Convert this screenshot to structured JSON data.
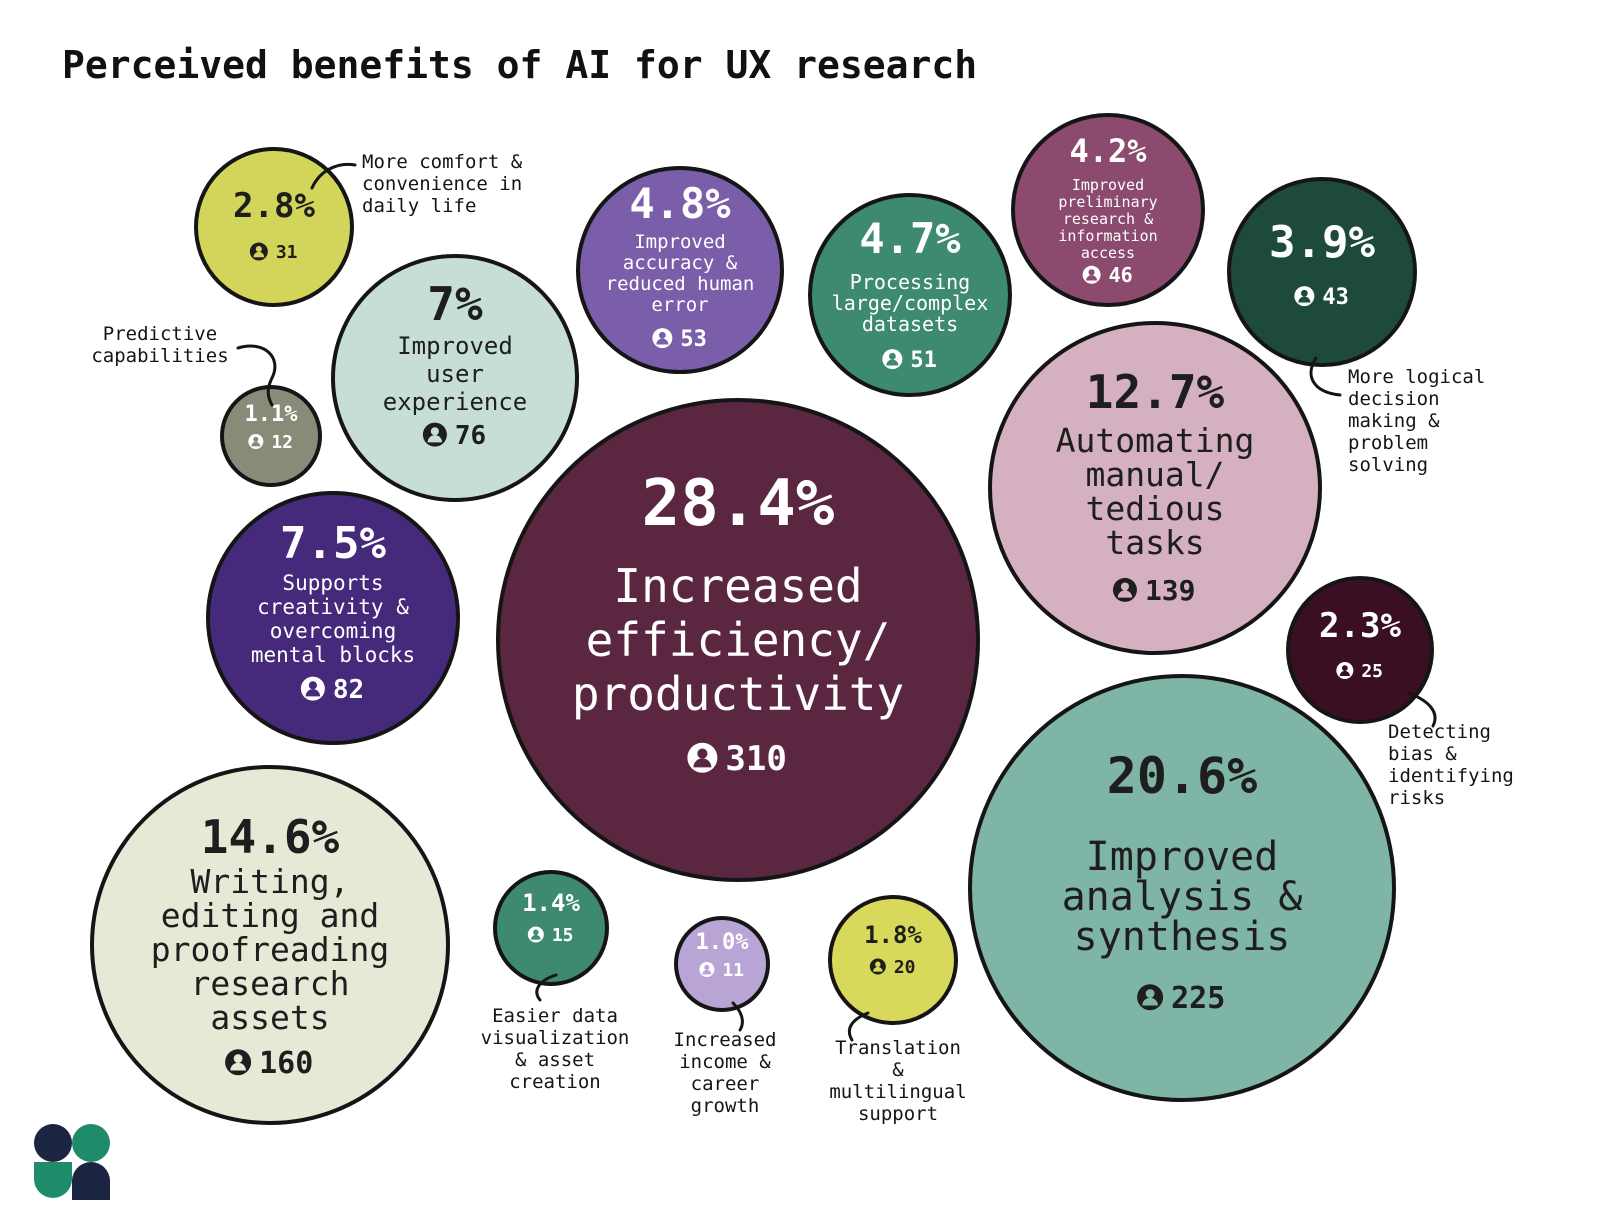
{
  "chart_data": {
    "type": "bubble",
    "title": "Perceived benefits of AI for UX research",
    "series": [
      {
        "label": "Increased efficiency/ productivity",
        "percent": "28.4%",
        "count": 310,
        "color": "#5b2640",
        "text_color": "#ffffff"
      },
      {
        "label": "Improved analysis & synthesis",
        "percent": "20.6%",
        "count": 225,
        "color": "#7eb5a6",
        "text_color": "#1e1e1e"
      },
      {
        "label": "Writing, editing and proofreading research assets",
        "percent": "14.6%",
        "count": 160,
        "color": "#e8e8d6",
        "text_color": "#1e1e1e"
      },
      {
        "label": "Automating manual/ tedious tasks",
        "percent": "12.7%",
        "count": 139,
        "color": "#d4b0c0",
        "text_color": "#1e1e1e"
      },
      {
        "label": "Supports creativity & overcoming mental blocks",
        "percent": "7.5%",
        "count": 82,
        "color": "#452a7b",
        "text_color": "#ffffff"
      },
      {
        "label": "Improved user experience",
        "percent": "7%",
        "count": 76,
        "color": "#c6ded7",
        "text_color": "#1e1e1e"
      },
      {
        "label": "Improved accuracy & reduced human error",
        "percent": "4.8%",
        "count": 53,
        "color": "#7a5eaa",
        "text_color": "#ffffff"
      },
      {
        "label": "Processing large/complex datasets",
        "percent": "4.7%",
        "count": 51,
        "color": "#3e8a70",
        "text_color": "#ffffff"
      },
      {
        "label": "Improved preliminary research & information access",
        "percent": "4.2%",
        "count": 46,
        "color": "#8b4a6e",
        "text_color": "#ffffff"
      },
      {
        "label": "More logical decision making & problem solving",
        "percent": "3.9%",
        "count": 43,
        "color": "#1e4a3c",
        "text_color": "#ffffff"
      },
      {
        "label": "More comfort & convenience in daily life",
        "percent": "2.8%",
        "count": 31,
        "color": "#d3d55a",
        "text_color": "#1e1e1e"
      },
      {
        "label": "Detecting bias & identifying risks",
        "percent": "2.3%",
        "count": 25,
        "color": "#3a0f24",
        "text_color": "#ffffff"
      },
      {
        "label": "Translation & multilingual support",
        "percent": "1.8%",
        "count": 20,
        "color": "#d8d85a",
        "text_color": "#1e1e1e"
      },
      {
        "label": "Easier data visualization & asset creation",
        "percent": "1.4%",
        "count": 15,
        "color": "#3e8a70",
        "text_color": "#ffffff"
      },
      {
        "label": "Predictive capabilities",
        "percent": "1.1%",
        "count": 12,
        "color": "#8a8a78",
        "text_color": "#ffffff"
      },
      {
        "label": "Increased income & career growth",
        "percent": "1.0%",
        "count": 11,
        "color": "#b9a4d6",
        "text_color": "#ffffff"
      }
    ]
  }
}
